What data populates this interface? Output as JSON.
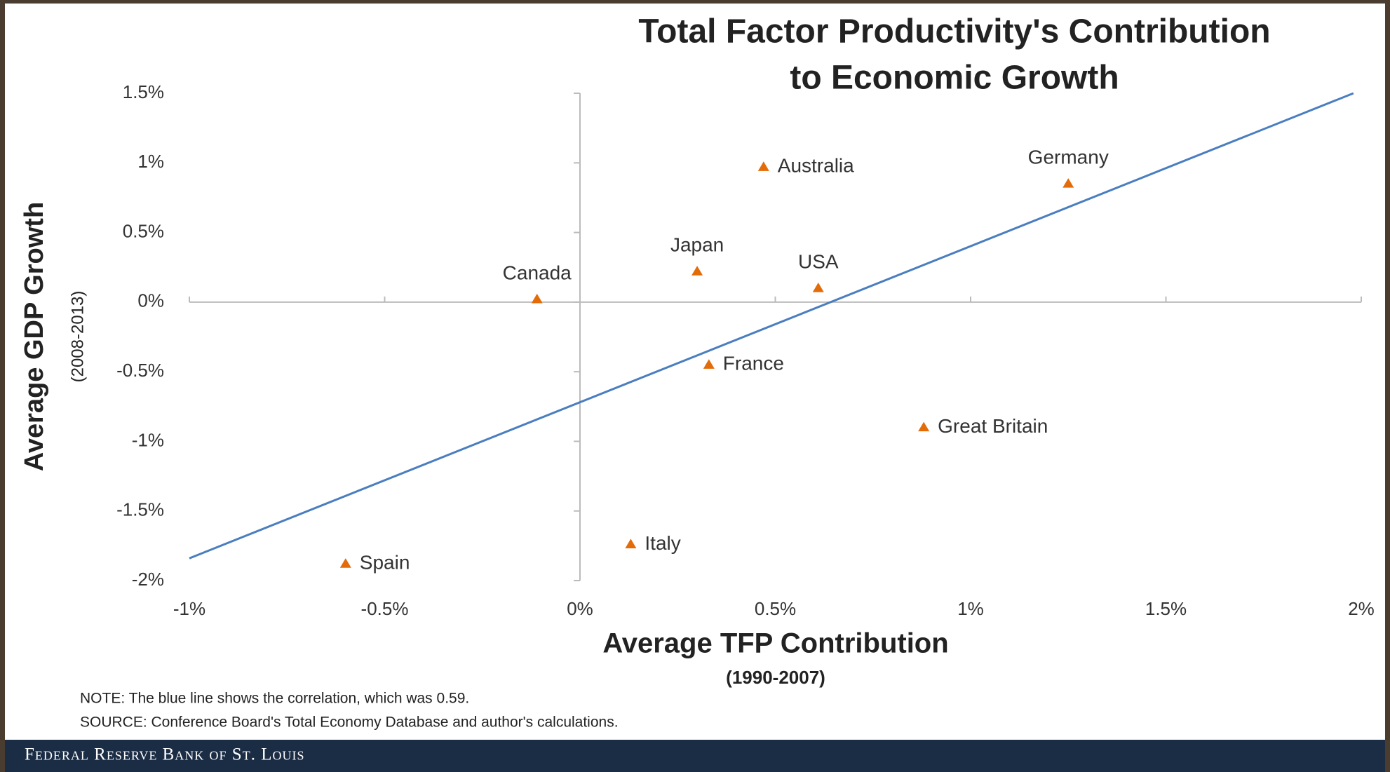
{
  "chart_data": {
    "type": "scatter",
    "title": [
      "Total Factor Productivity's Contribution",
      "to Economic Growth"
    ],
    "x_label": "Average TFP Contribution",
    "x_sublabel": "(1990-2007)",
    "y_label": "Average GDP Growth",
    "y_sublabel": "(2008-2013)",
    "labels": [
      "Australia",
      "Germany",
      "Japan",
      "USA",
      "Canada",
      "France",
      "Great Britain",
      "Italy",
      "Spain"
    ],
    "x": [
      0.47,
      1.25,
      0.3,
      0.61,
      -0.11,
      0.33,
      0.88,
      0.13,
      -0.6
    ],
    "y": [
      0.97,
      0.85,
      0.22,
      0.1,
      0.02,
      -0.45,
      -0.9,
      -1.74,
      -1.88
    ],
    "color": "#e36c09",
    "trendline": {
      "x": [
        -1,
        1.98
      ],
      "y": [
        -1.84,
        1.5
      ],
      "color": "#4a7ebf"
    },
    "xlim": [
      -1,
      2
    ],
    "ylim": [
      -2,
      1.5
    ],
    "xticks": [
      {
        "value": -1,
        "label": "-1%"
      },
      {
        "value": -0.5,
        "label": "-0.5%"
      },
      {
        "value": 0,
        "label": "0%"
      },
      {
        "value": 0.5,
        "label": "0.5%"
      },
      {
        "value": 1,
        "label": "1%"
      },
      {
        "value": 1.5,
        "label": "1.5%"
      },
      {
        "value": 2,
        "label": "2%"
      }
    ],
    "yticks": [
      {
        "value": 1.5,
        "label": "1.5%"
      },
      {
        "value": 1,
        "label": "1%"
      },
      {
        "value": 0.5,
        "label": "0.5%"
      },
      {
        "value": 0,
        "label": "0%"
      },
      {
        "value": -0.5,
        "label": "-0.5%"
      },
      {
        "value": -1,
        "label": "-1%"
      },
      {
        "value": -1.5,
        "label": "-1.5%"
      },
      {
        "value": -2,
        "label": "-2%"
      }
    ],
    "grid": false,
    "notes": [
      "NOTE: The blue line shows the correlation, which was 0.59.",
      "SOURCE: Conference Board's Total Economy Database and author's calculations."
    ],
    "footer": "Federal Reserve Bank of St. Louis"
  }
}
